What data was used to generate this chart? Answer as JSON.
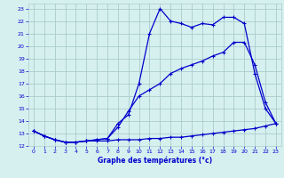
{
  "title": "Graphe des températures (°c)",
  "bg_color": "#d6f0f0",
  "grid_color": "#aacccc",
  "line_color": "#0000cc",
  "xlim": [
    -0.5,
    23.5
  ],
  "ylim": [
    12,
    23.4
  ],
  "xticks": [
    0,
    1,
    2,
    3,
    4,
    5,
    6,
    7,
    8,
    9,
    10,
    11,
    12,
    13,
    14,
    15,
    16,
    17,
    18,
    19,
    20,
    21,
    22,
    23
  ],
  "yticks": [
    12,
    13,
    14,
    15,
    16,
    17,
    18,
    19,
    20,
    21,
    22,
    23
  ],
  "s1_x": [
    0,
    1,
    2,
    3,
    4,
    5,
    6,
    7,
    8,
    9,
    10,
    11,
    12,
    13,
    14,
    15,
    16,
    17,
    18,
    19,
    20,
    21,
    22,
    23
  ],
  "s1_y": [
    13.2,
    12.8,
    12.5,
    12.3,
    12.3,
    12.4,
    12.5,
    12.6,
    13.8,
    14.5,
    17.0,
    21.0,
    23.0,
    22.0,
    21.8,
    21.5,
    21.8,
    21.7,
    22.3,
    22.3,
    21.8,
    17.8,
    15.0,
    13.8
  ],
  "s2_x": [
    0,
    1,
    2,
    3,
    4,
    5,
    6,
    7,
    8,
    9,
    10,
    11,
    12,
    13,
    14,
    15,
    16,
    17,
    18,
    19,
    20,
    21,
    22,
    23
  ],
  "s2_y": [
    13.2,
    12.8,
    12.5,
    12.3,
    12.3,
    12.4,
    12.5,
    12.6,
    13.5,
    14.8,
    16.0,
    16.5,
    17.0,
    17.8,
    18.2,
    18.5,
    18.8,
    19.2,
    19.5,
    20.3,
    20.3,
    18.5,
    15.5,
    13.8
  ],
  "s3_x": [
    0,
    1,
    2,
    3,
    4,
    5,
    6,
    7,
    8,
    9,
    10,
    11,
    12,
    13,
    14,
    15,
    16,
    17,
    18,
    19,
    20,
    21,
    22,
    23
  ],
  "s3_y": [
    13.2,
    12.8,
    12.5,
    12.3,
    12.3,
    12.4,
    12.4,
    12.4,
    12.5,
    12.5,
    12.5,
    12.6,
    12.6,
    12.7,
    12.7,
    12.8,
    12.9,
    13.0,
    13.1,
    13.2,
    13.3,
    13.4,
    13.6,
    13.8
  ]
}
